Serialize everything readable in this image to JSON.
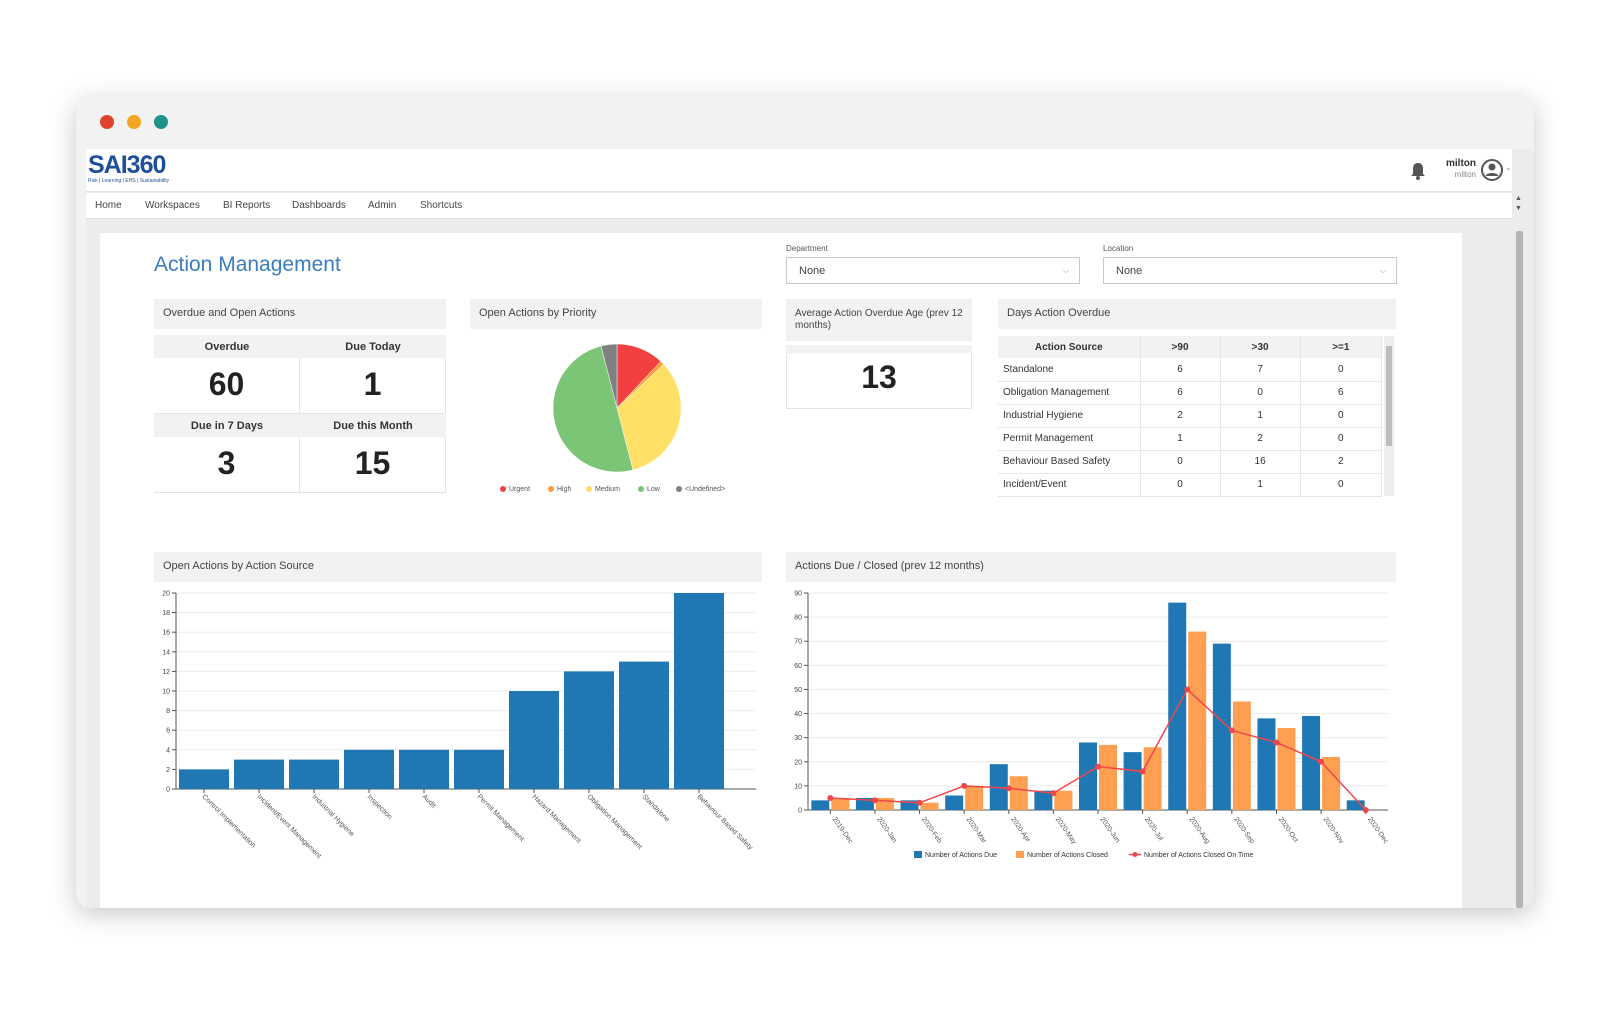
{
  "app": {
    "logo_text": "SAI360",
    "logo_tagline": "Risk | Learning | EHS | Sustainability",
    "user_name": "milton",
    "user_sub": "milton"
  },
  "nav": [
    "Home",
    "Workspaces",
    "BI Reports",
    "Dashboards",
    "Admin",
    "Shortcuts"
  ],
  "page": {
    "title": "Action Management"
  },
  "filters": {
    "department_label": "Department",
    "department_value": "None",
    "location_label": "Location",
    "location_value": "None"
  },
  "overdue_panel": {
    "title": "Overdue and Open Actions",
    "overdue_label": "Overdue",
    "overdue_value": "60",
    "due_today_label": "Due Today",
    "due_today_value": "1",
    "due7_label": "Due in 7 Days",
    "due7_value": "3",
    "due_month_label": "Due this Month",
    "due_month_value": "15"
  },
  "priority_panel": {
    "title": "Open Actions by Priority"
  },
  "avg_panel": {
    "title": "Average Action Overdue Age (prev 12 months)",
    "value": "13"
  },
  "days_panel": {
    "title": "Days Action Overdue",
    "columns": [
      "Action Source",
      ">90",
      ">30",
      ">=1"
    ],
    "rows": [
      [
        "Standalone",
        "6",
        "7",
        "0"
      ],
      [
        "Obligation Management",
        "6",
        "0",
        "6"
      ],
      [
        "Industrial Hygiene",
        "2",
        "1",
        "0"
      ],
      [
        "Permit Management",
        "1",
        "2",
        "0"
      ],
      [
        "Behaviour Based Safety",
        "0",
        "16",
        "2"
      ],
      [
        "Incident/Event",
        "0",
        "1",
        "0"
      ]
    ]
  },
  "source_panel": {
    "title": "Open Actions by Action Source"
  },
  "closed_panel": {
    "title": "Actions Due / Closed (prev 12 months)"
  },
  "colors": {
    "blue": "#1f77b4",
    "orange": "#ff9f52",
    "red": "#f2474a",
    "urgent": "#f24040",
    "high": "#ff9a3c",
    "medium": "#ffe066",
    "low": "#7cc576",
    "undefined": "#808080",
    "title_blue": "#3a7cbf"
  },
  "chart_data": [
    {
      "type": "pie",
      "title": "Open Actions by Priority",
      "categories": [
        "Urgent",
        "High",
        "Medium",
        "Low",
        "<Undefined>"
      ],
      "values": [
        12,
        1,
        33,
        50,
        4
      ]
    },
    {
      "type": "bar",
      "title": "Open Actions by Action Source",
      "categories": [
        "Control Implementation",
        "Incident/Event Management",
        "Industrial Hygiene",
        "Inspection",
        "Audit",
        "Permit Management",
        "Hazard Management",
        "Obligation Management",
        "Standalone",
        "Behaviour Based Safety"
      ],
      "values": [
        2,
        3,
        3,
        4,
        4,
        4,
        10,
        12,
        13,
        20
      ],
      "ylim": [
        0,
        20
      ],
      "yticks": [
        0,
        2,
        4,
        6,
        8,
        10,
        12,
        14,
        16,
        18,
        20
      ]
    },
    {
      "type": "bar",
      "title": "Actions Due / Closed (prev 12 months)",
      "categories": [
        "2019-Dec",
        "2020-Jan",
        "2020-Feb",
        "2020-Mar",
        "2020-Apr",
        "2020-May",
        "2020-Jun",
        "2020-Jul",
        "2020-Aug",
        "2020-Sep",
        "2020-Oct",
        "2020-Nov",
        "2020-Dec"
      ],
      "ylim": [
        0,
        90
      ],
      "yticks": [
        0,
        10,
        20,
        30,
        40,
        50,
        60,
        70,
        80,
        90
      ],
      "series": [
        {
          "name": "Number of Actions Due",
          "kind": "bar",
          "values": [
            4,
            5,
            4,
            6,
            19,
            8,
            28,
            24,
            86,
            69,
            38,
            39,
            4
          ]
        },
        {
          "name": "Number of Actions Closed",
          "kind": "bar",
          "values": [
            5,
            5,
            3,
            10,
            14,
            8,
            27,
            26,
            74,
            45,
            34,
            22,
            0
          ]
        },
        {
          "name": "Number of Actions Closed On Time",
          "kind": "line",
          "values": [
            5,
            4,
            3,
            10,
            9,
            7,
            18,
            16,
            50,
            33,
            28,
            20,
            0
          ]
        }
      ]
    }
  ]
}
